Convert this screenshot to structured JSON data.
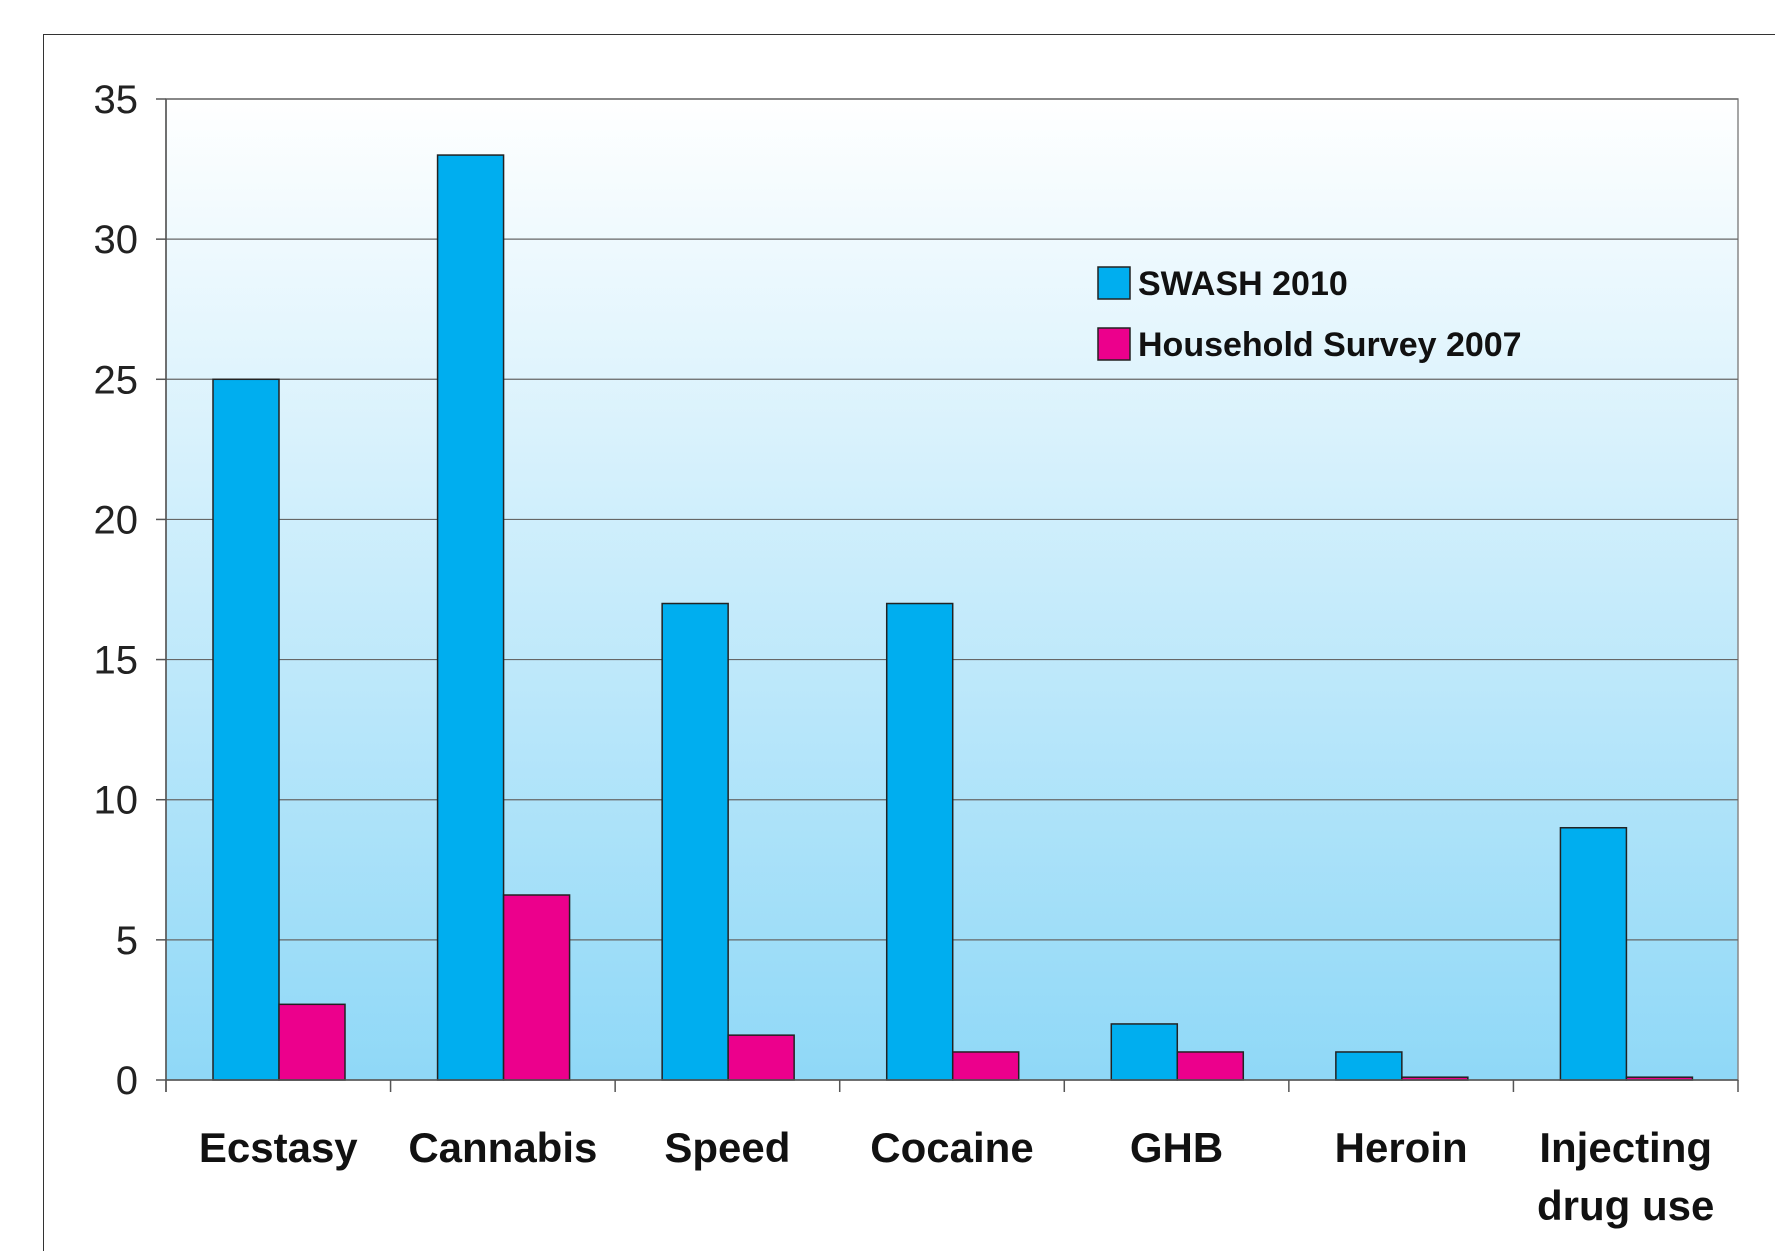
{
  "chart_data": {
    "type": "bar",
    "categories": [
      "Ecstasy",
      "Cannabis",
      "Speed",
      "Cocaine",
      "GHB",
      "Heroin",
      "Injecting drug use"
    ],
    "category_lines": [
      [
        "Ecstasy"
      ],
      [
        "Cannabis"
      ],
      [
        "Speed"
      ],
      [
        "Cocaine"
      ],
      [
        "GHB"
      ],
      [
        "Heroin"
      ],
      [
        "Injecting",
        "drug use"
      ]
    ],
    "series": [
      {
        "name": "SWASH 2010",
        "color": "#00aeef",
        "values": [
          25,
          33,
          17,
          17,
          2,
          1,
          9
        ]
      },
      {
        "name": "Household Survey 2007",
        "color": "#ec008c",
        "values": [
          2.7,
          6.6,
          1.6,
          1,
          1,
          0.1,
          0.1
        ]
      }
    ],
    "ylim": [
      0,
      35
    ],
    "yticks": [
      0,
      5,
      10,
      15,
      20,
      25,
      30,
      35
    ],
    "grid": true,
    "legend_position": "top-right",
    "background_gradient": [
      "#ffffff",
      "#8fd8f7"
    ],
    "title": "",
    "xlabel": "",
    "ylabel": ""
  }
}
